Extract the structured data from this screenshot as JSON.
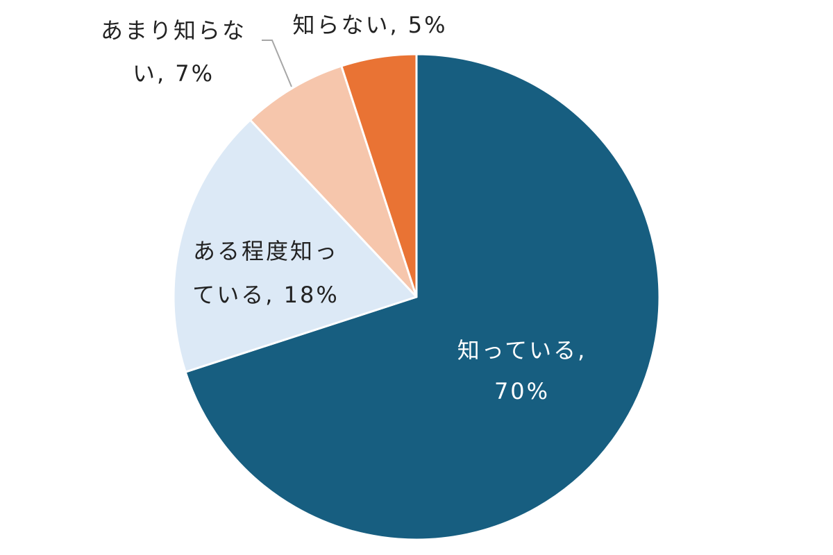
{
  "chart_data": {
    "type": "pie",
    "start_angle_deg": 0,
    "direction": "clockwise",
    "slices": [
      {
        "label": "知っている",
        "value": 70,
        "value_text": "70%",
        "color": "#175e80",
        "label_color": "#ffffff"
      },
      {
        "label": "ある程度知っている",
        "value": 18,
        "value_text": "18%",
        "color": "#dce9f6",
        "label_color": "#222222"
      },
      {
        "label": "あまり知らない",
        "value": 7,
        "value_text": "7%",
        "color": "#f6c6ac",
        "label_color": "#222222"
      },
      {
        "label": "知らない",
        "value": 5,
        "value_text": "5%",
        "color": "#e97334",
        "label_color": "#222222"
      }
    ]
  }
}
